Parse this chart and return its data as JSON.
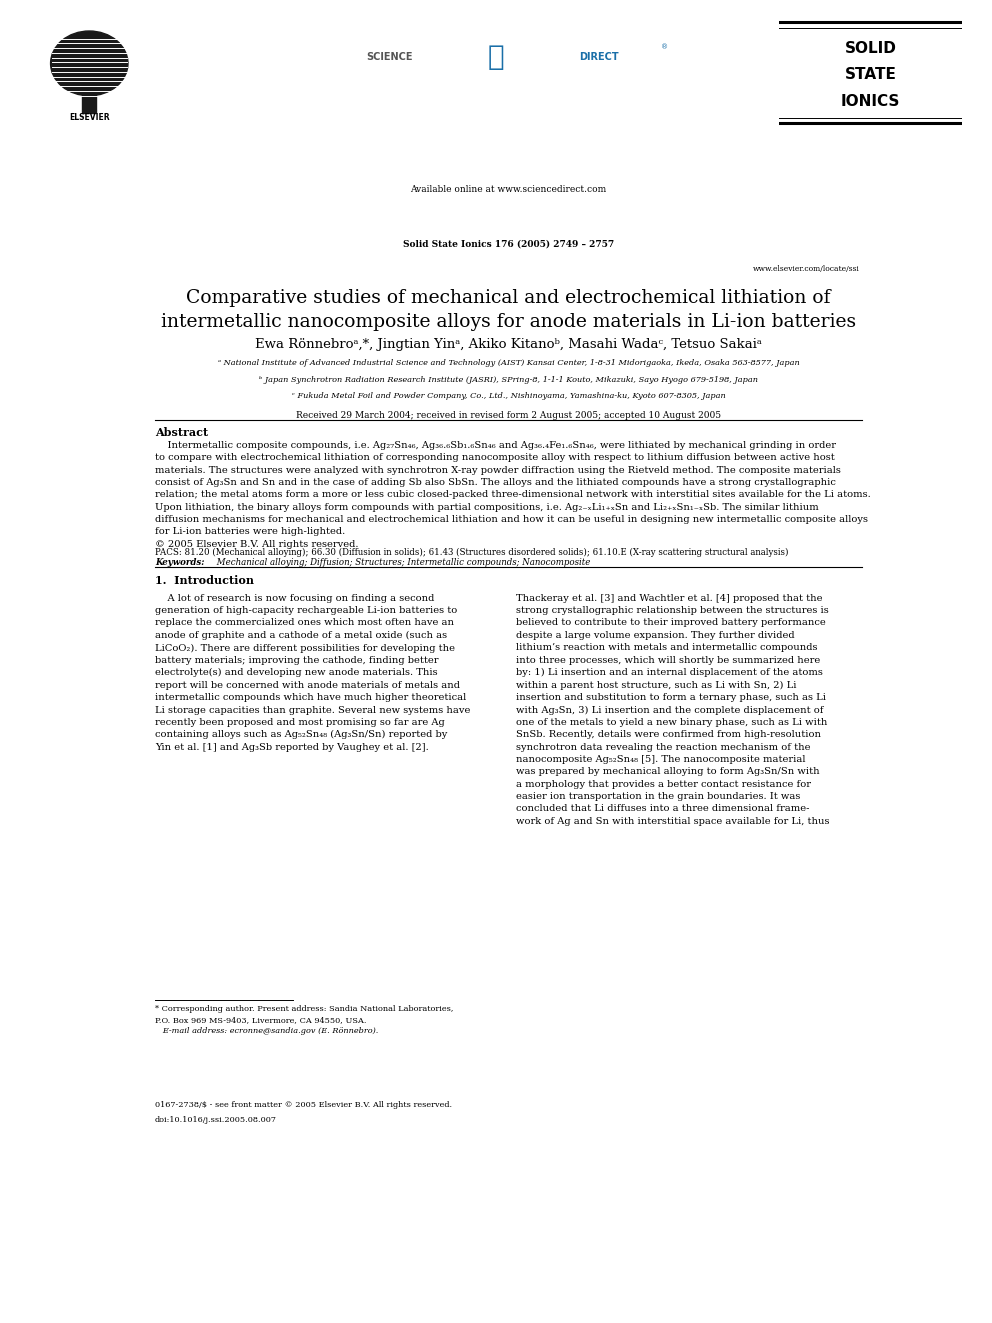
{
  "page_width": 9.92,
  "page_height": 13.23,
  "dpi": 100,
  "background_color": "#ffffff",
  "available_online": "Available online at www.sciencedirect.com",
  "journal_info": "Solid State Ionics 176 (2005) 2749 – 2757",
  "journal_url": "www.elsevier.com/locate/ssi",
  "elsevier_text": "ELSEVIER",
  "ssi_line1": "SOLID",
  "ssi_line2": "STATE",
  "ssi_line3": "IONICS",
  "title": "Comparative studies of mechanical and electrochemical lithiation of\nintermetallic nanocomposite alloys for anode materials in Li-ion batteries",
  "authors": "Ewa Rönnebroᵃ,*, Jingtian Yinᵃ, Akiko Kitanoᵇ, Masahi Wadaᶜ, Tetsuo Sakaiᵃ",
  "affiliations": [
    "ᵃ National Institute of Advanced Industrial Science and Technology (AIST) Kansai Center, 1-8-31 Midorigaoka, Ikeda, Osaka 563-8577, Japan",
    "ᵇ Japan Synchrotron Radiation Research Institute (JASRI), SPring-8, 1-1-1 Kouto, Mikazuki, Sayo Hyogo 679-5198, Japan",
    "ᶜ Fukuda Metal Foil and Powder Company, Co., Ltd., Nishinoyama, Yamashina-ku, Kyoto 607-8305, Japan"
  ],
  "received": "Received 29 March 2004; received in revised form 2 August 2005; accepted 10 August 2005",
  "abstract_heading": "Abstract",
  "abstract_text": "    Intermetallic composite compounds, i.e. Ag₂₇Sn₄₆, Ag₃₆.₆Sb₁.₆Sn₄₆ and Ag₃₆.₄Fe₁.₆Sn₄₆, were lithiated by mechanical grinding in order\nto compare with electrochemical lithiation of corresponding nanocomposite alloy with respect to lithium diffusion between active host\nmaterials. The structures were analyzed with synchrotron X-ray powder diffraction using the Rietveld method. The composite materials\nconsist of Ag₃Sn and Sn and in the case of adding Sb also SbSn. The alloys and the lithiated compounds have a strong crystallographic\nrelation; the metal atoms form a more or less cubic closed-packed three-dimensional network with interstitial sites available for the Li atoms.\nUpon lithiation, the binary alloys form compounds with partial compositions, i.e. Ag₂₋ₓLi₁₊ₓSn and Li₂₊ₓSn₁₋ₓSb. The similar lithium\ndiffusion mechanisms for mechanical and electrochemical lithiation and how it can be useful in designing new intermetallic composite alloys\nfor Li-ion batteries were high-lighted.\n© 2005 Elsevier B.V. All rights reserved.",
  "pacs_text": "PACS: 81.20 (Mechanical alloying); 66.30 (Diffusion in solids); 61.43 (Structures disordered solids); 61.10.E (X-ray scattering structural analysis)",
  "keywords_label": "Keywords:",
  "keywords_text": " Mechanical alloying; Diffusion; Structures; Intermetallic compounds; Nanocomposite",
  "section1_heading": "1.  Introduction",
  "intro_col1": "    A lot of research is now focusing on finding a second\ngeneration of high-capacity rechargeable Li-ion batteries to\nreplace the commercialized ones which most often have an\nanode of graphite and a cathode of a metal oxide (such as\nLiCoO₂). There are different possibilities for developing the\nbattery materials; improving the cathode, finding better\nelectrolyte(s) and developing new anode materials. This\nreport will be concerned with anode materials of metals and\nintermetallic compounds which have much higher theoretical\nLi storage capacities than graphite. Several new systems have\nrecently been proposed and most promising so far are Ag\ncontaining alloys such as Ag₅₂Sn₄₈ (Ag₃Sn/Sn) reported by\nYin et al. [1] and Ag₃Sb reported by Vaughey et al. [2].",
  "intro_col2": "Thackeray et al. [3] and Wachtler et al. [4] proposed that the\nstrong crystallographic relationship between the structures is\nbelieved to contribute to their improved battery performance\ndespite a large volume expansion. They further divided\nlithium’s reaction with metals and intermetallic compounds\ninto three processes, which will shortly be summarized here\nby: 1) Li insertion and an internal displacement of the atoms\nwithin a parent host structure, such as Li with Sn, 2) Li\ninsertion and substitution to form a ternary phase, such as Li\nwith Ag₃Sn, 3) Li insertion and the complete displacement of\none of the metals to yield a new binary phase, such as Li with\nSnSb. Recently, details were confirmed from high-resolution\nsynchrotron data revealing the reaction mechanism of the\nnanocomposite Ag₅₂Sn₄₈ [5]. The nanocomposite material\nwas prepared by mechanical alloying to form Ag₃Sn/Sn with\na morphology that provides a better contact resistance for\neasier ion transportation in the grain boundaries. It was\nconcluded that Li diffuses into a three dimensional frame-\nwork of Ag and Sn with interstitial space available for Li, thus",
  "footnote_star": "* Corresponding author. Present address: Sandia National Laboratories,\nP.O. Box 969 MS-9403, Livermore, CA 94550, USA.",
  "footnote_email": "   E-mail address: ecronne@sandia.gov (E. Rönnebro).",
  "footnote_issn": "0167-2738/$ - see front matter © 2005 Elsevier B.V. All rights reserved.",
  "footnote_doi": "doi:10.1016/j.ssi.2005.08.007"
}
